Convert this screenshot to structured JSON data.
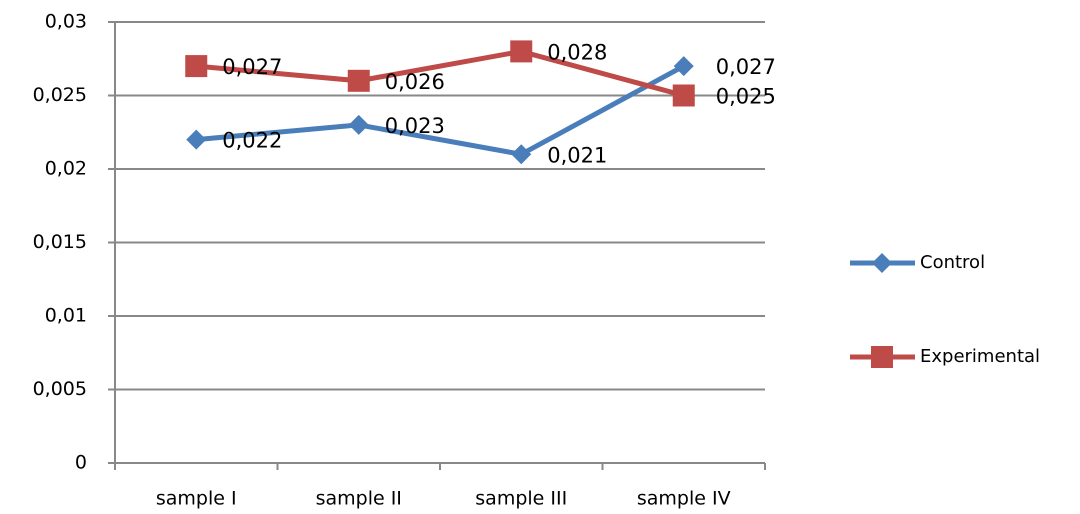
{
  "chart_data": {
    "type": "line",
    "categories": [
      "sample I",
      "sample II",
      "sample III",
      "sample IV"
    ],
    "series": [
      {
        "name": "Control",
        "color": "#4a7ebb",
        "marker": "diamond",
        "values": [
          0.022,
          0.023,
          0.021,
          0.027
        ],
        "value_labels": [
          "0,022",
          "0,023",
          "0,021",
          "0,027"
        ]
      },
      {
        "name": "Experimental",
        "color": "#be4b48",
        "marker": "square",
        "values": [
          0.027,
          0.026,
          0.028,
          0.025
        ],
        "value_labels": [
          "0,027",
          "0,026",
          "0,028",
          "0,025"
        ]
      }
    ],
    "ylim": [
      0,
      0.03
    ],
    "yticks": [
      0,
      {
        "value": 0.005,
        "label": "0,005"
      },
      {
        "value": 0.01,
        "label": "0,01"
      },
      {
        "value": 0.015,
        "label": "0,015"
      },
      {
        "value": 0.02,
        "label": "0,02"
      },
      {
        "value": 0.025,
        "label": "0,025"
      },
      {
        "value": 0.03,
        "label": "0,03"
      }
    ],
    "grid": true,
    "legend": "right"
  }
}
